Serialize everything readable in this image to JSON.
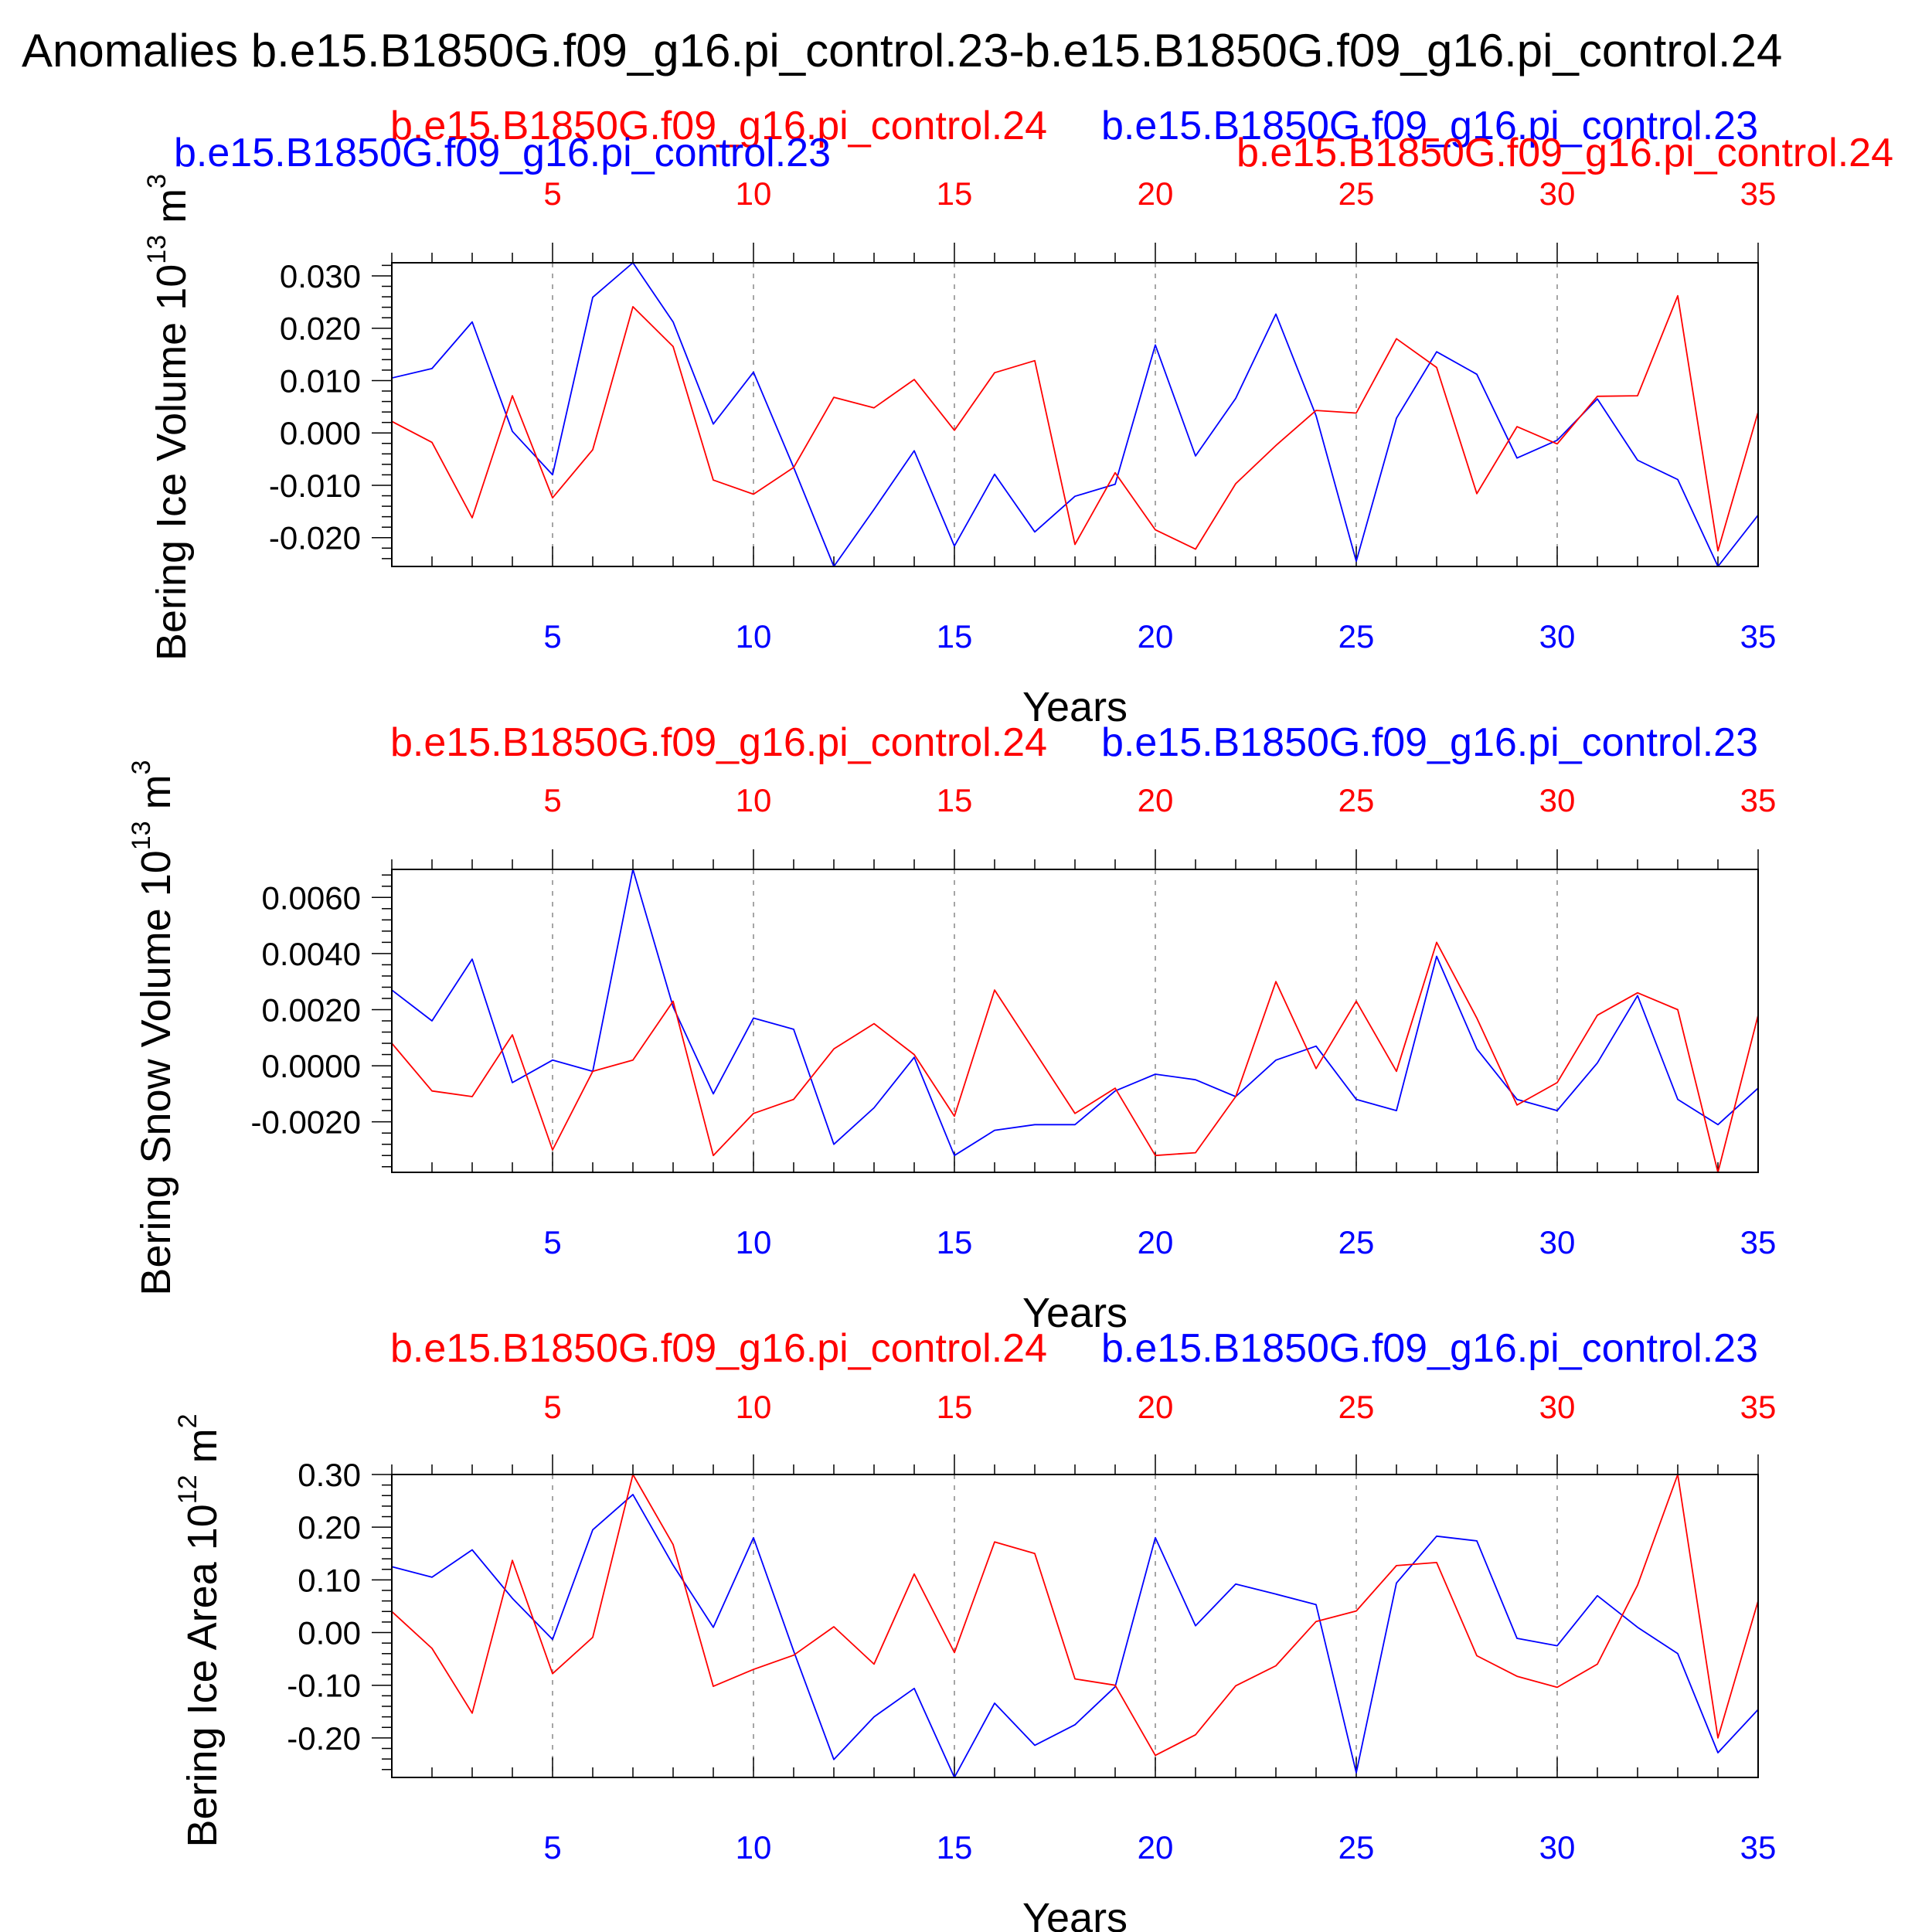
{
  "figure_title": "Anomalies b.e15.B1850G.f09_g16.pi_control.23-b.e15.B1850G.f09_g16.pi_control.24",
  "colors": {
    "series_a": "#0000ff",
    "series_b": "#ff0000",
    "axis": "#000000",
    "grid": "#888888"
  },
  "chart_data": [
    {
      "type": "line",
      "panel": "ice-volume",
      "ylabel": "Bering Ice Volume 10^13 m^3",
      "ylabel_parts": {
        "main": "Bering Ice Volume 10",
        "exp1": "13",
        "unit": " m",
        "exp2": "3"
      },
      "xlabel": "Years",
      "xlim": [
        1,
        35
      ],
      "ylim": [
        -0.0255,
        0.0325
      ],
      "yticks": [
        -0.02,
        -0.01,
        0.0,
        0.01,
        0.02,
        0.03
      ],
      "ytick_labels": [
        "-0.020",
        "-0.010",
        "0.000",
        "0.010",
        "0.020",
        "0.030"
      ],
      "xticks": [
        5,
        10,
        15,
        20,
        25,
        30,
        35
      ],
      "xtick_labels": [
        "5",
        "10",
        "15",
        "20",
        "25",
        "30",
        "35"
      ],
      "top_labels": {
        "red_left": "b.e15.B1850G.f09_g16.pi_control.24",
        "blue_right": "b.e15.B1850G.f09_g16.pi_control.23",
        "red_right": "b.e15.B1850G.f09_g16.pi_control.24",
        "blue_left": "b.e15.B1850G.f09_g16.pi_control.23"
      },
      "x": [
        1,
        2,
        3,
        4,
        5,
        6,
        7,
        8,
        9,
        10,
        11,
        12,
        13,
        14,
        15,
        16,
        17,
        18,
        19,
        20,
        21,
        22,
        23,
        24,
        25,
        26,
        27,
        28,
        29,
        30,
        31,
        32,
        33,
        34,
        35
      ],
      "series": [
        {
          "name": "b.e15.B1850G.f09_g16.pi_control.23",
          "color": "#0000ff",
          "values": [
            0.0105,
            0.0123,
            0.0212,
            0.0003,
            -0.008,
            0.0259,
            0.0325,
            0.0212,
            0.0017,
            0.0116,
            -0.0066,
            -0.0255,
            -0.0146,
            -0.0034,
            -0.0216,
            -0.0079,
            -0.0189,
            -0.0121,
            -0.0098,
            0.0168,
            -0.0044,
            0.0066,
            0.0227,
            0.0033,
            -0.0245,
            0.0028,
            0.0155,
            0.0112,
            -0.0048,
            -0.0014,
            0.0065,
            -0.0052,
            -0.0089,
            -0.0255,
            -0.0157
          ]
        },
        {
          "name": "b.e15.B1850G.f09_g16.pi_control.24",
          "color": "#ff0000",
          "values": [
            0.0022,
            -0.0018,
            -0.0162,
            0.0071,
            -0.0124,
            -0.0032,
            0.0241,
            0.0165,
            -0.009,
            -0.0117,
            -0.0066,
            0.0068,
            0.0048,
            0.0102,
            0.0005,
            0.0115,
            0.0138,
            -0.0213,
            -0.0076,
            -0.0185,
            -0.0222,
            -0.0097,
            -0.0024,
            0.0043,
            0.0038,
            0.018,
            0.0125,
            -0.0116,
            0.0012,
            -0.0021,
            0.007,
            0.0071,
            0.0262,
            -0.0225,
            0.004
          ]
        }
      ]
    },
    {
      "type": "line",
      "panel": "snow-volume",
      "ylabel": "Bering Snow Volume 10^13 m^3",
      "ylabel_parts": {
        "main": "Bering Snow Volume 10",
        "exp1": "13",
        "unit": " m",
        "exp2": "3"
      },
      "xlabel": "Years",
      "xlim": [
        1,
        35
      ],
      "ylim": [
        -0.0038,
        0.007
      ],
      "yticks": [
        -0.002,
        0.0,
        0.002,
        0.004,
        0.006
      ],
      "ytick_labels": [
        "-0.0020",
        "0.0000",
        "0.0020",
        "0.0040",
        "0.0060"
      ],
      "xticks": [
        5,
        10,
        15,
        20,
        25,
        30,
        35
      ],
      "xtick_labels": [
        "5",
        "10",
        "15",
        "20",
        "25",
        "30",
        "35"
      ],
      "top_labels": {
        "red_left": "b.e15.B1850G.f09_g16.pi_control.24",
        "blue_right": "b.e15.B1850G.f09_g16.pi_control.23"
      },
      "x": [
        1,
        2,
        3,
        4,
        5,
        6,
        7,
        8,
        9,
        10,
        11,
        12,
        13,
        14,
        15,
        16,
        17,
        18,
        19,
        20,
        21,
        22,
        23,
        24,
        25,
        26,
        27,
        28,
        29,
        30,
        31,
        32,
        33,
        34,
        35
      ],
      "series": [
        {
          "name": "b.e15.B1850G.f09_g16.pi_control.23",
          "color": "#0000ff",
          "values": [
            0.0027,
            0.0016,
            0.0038,
            -0.0006,
            0.0002,
            -0.0002,
            0.007,
            0.0021,
            -0.001,
            0.0017,
            0.0013,
            -0.0028,
            -0.0015,
            0.0003,
            -0.0032,
            -0.0023,
            -0.0021,
            -0.0021,
            -0.0009,
            -0.0003,
            -0.0005,
            -0.0011,
            0.0002,
            0.0007,
            -0.0012,
            -0.0016,
            0.0039,
            0.0006,
            -0.0012,
            -0.0016,
            0.0001,
            0.0025,
            -0.0012,
            -0.0021,
            -0.0008
          ]
        },
        {
          "name": "b.e15.B1850G.f09_g16.pi_control.24",
          "color": "#ff0000",
          "values": [
            0.0008,
            -0.0009,
            -0.0011,
            0.0011,
            -0.003,
            -0.0002,
            0.0002,
            0.0023,
            -0.0032,
            -0.0017,
            -0.0012,
            0.0006,
            0.0015,
            0.0004,
            -0.0018,
            0.0027,
            0.0005,
            -0.0017,
            -0.0008,
            -0.0032,
            -0.0031,
            -0.0011,
            0.003,
            -0.0001,
            0.0023,
            -0.0002,
            0.0044,
            0.0017,
            -0.0014,
            -0.0006,
            0.0018,
            0.0026,
            0.002,
            -0.0038,
            0.0018
          ]
        }
      ]
    },
    {
      "type": "line",
      "panel": "ice-area",
      "ylabel": "Bering Ice Area 10^12 m^2",
      "ylabel_parts": {
        "main": "Bering Ice Area 10",
        "exp1": "12",
        "unit": " m",
        "exp2": "2"
      },
      "xlabel": "Years",
      "xlim": [
        1,
        35
      ],
      "ylim": [
        -0.275,
        0.3
      ],
      "yticks": [
        -0.2,
        -0.1,
        0.0,
        0.1,
        0.2,
        0.3
      ],
      "ytick_labels": [
        "-0.20",
        "-0.10",
        "0.00",
        "0.10",
        "0.20",
        "0.30"
      ],
      "xticks": [
        5,
        10,
        15,
        20,
        25,
        30,
        35
      ],
      "xtick_labels": [
        "5",
        "10",
        "15",
        "20",
        "25",
        "30",
        "35"
      ],
      "top_labels": {
        "red_left": "b.e15.B1850G.f09_g16.pi_control.24",
        "blue_right": "b.e15.B1850G.f09_g16.pi_control.23"
      },
      "x": [
        1,
        2,
        3,
        4,
        5,
        6,
        7,
        8,
        9,
        10,
        11,
        12,
        13,
        14,
        15,
        16,
        17,
        18,
        19,
        20,
        21,
        22,
        23,
        24,
        25,
        26,
        27,
        28,
        29,
        30,
        31,
        32,
        33,
        34,
        35
      ],
      "series": [
        {
          "name": "b.e15.B1850G.f09_g16.pi_control.23",
          "color": "#0000ff",
          "values": [
            0.125,
            0.105,
            0.157,
            0.065,
            -0.013,
            0.195,
            0.262,
            0.128,
            0.01,
            0.18,
            -0.035,
            -0.241,
            -0.16,
            -0.106,
            -0.275,
            -0.134,
            -0.214,
            -0.175,
            -0.103,
            0.18,
            0.013,
            0.092,
            0.073,
            0.053,
            -0.266,
            0.094,
            0.183,
            0.174,
            -0.011,
            -0.025,
            0.07,
            0.01,
            -0.04,
            -0.228,
            -0.146
          ]
        },
        {
          "name": "b.e15.B1850G.f09_g16.pi_control.24",
          "color": "#ff0000",
          "values": [
            0.04,
            -0.03,
            -0.153,
            0.137,
            -0.078,
            -0.009,
            0.3,
            0.167,
            -0.102,
            -0.07,
            -0.043,
            0.011,
            -0.06,
            0.111,
            -0.038,
            0.172,
            0.15,
            -0.088,
            -0.1,
            -0.233,
            -0.194,
            -0.101,
            -0.063,
            0.021,
            0.041,
            0.127,
            0.133,
            -0.044,
            -0.083,
            -0.104,
            -0.06,
            0.09,
            0.3,
            -0.2,
            0.06
          ]
        }
      ]
    }
  ]
}
